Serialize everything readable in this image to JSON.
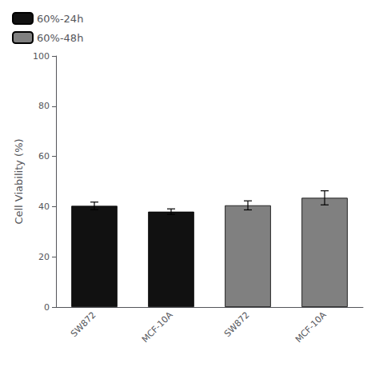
{
  "chart_data": {
    "type": "bar",
    "categories": [
      "SW872",
      "MCF-10A",
      "SW872",
      "MCF-10A"
    ],
    "series": [
      {
        "name": "60%-24h",
        "color": "#111111",
        "values": [
          40.3,
          38.0,
          null,
          null
        ],
        "errors": [
          1.5,
          1.1,
          null,
          null
        ]
      },
      {
        "name": "60%-48h",
        "color": "#808080",
        "values": [
          null,
          null,
          40.5,
          43.5
        ],
        "errors": [
          null,
          null,
          1.8,
          2.8
        ]
      }
    ],
    "y_label": "Cell Viability (%)",
    "ylim": [
      0,
      100
    ],
    "yticks": [
      0,
      20,
      40,
      60,
      80,
      100
    ],
    "grid": false,
    "legend": "upper left"
  }
}
